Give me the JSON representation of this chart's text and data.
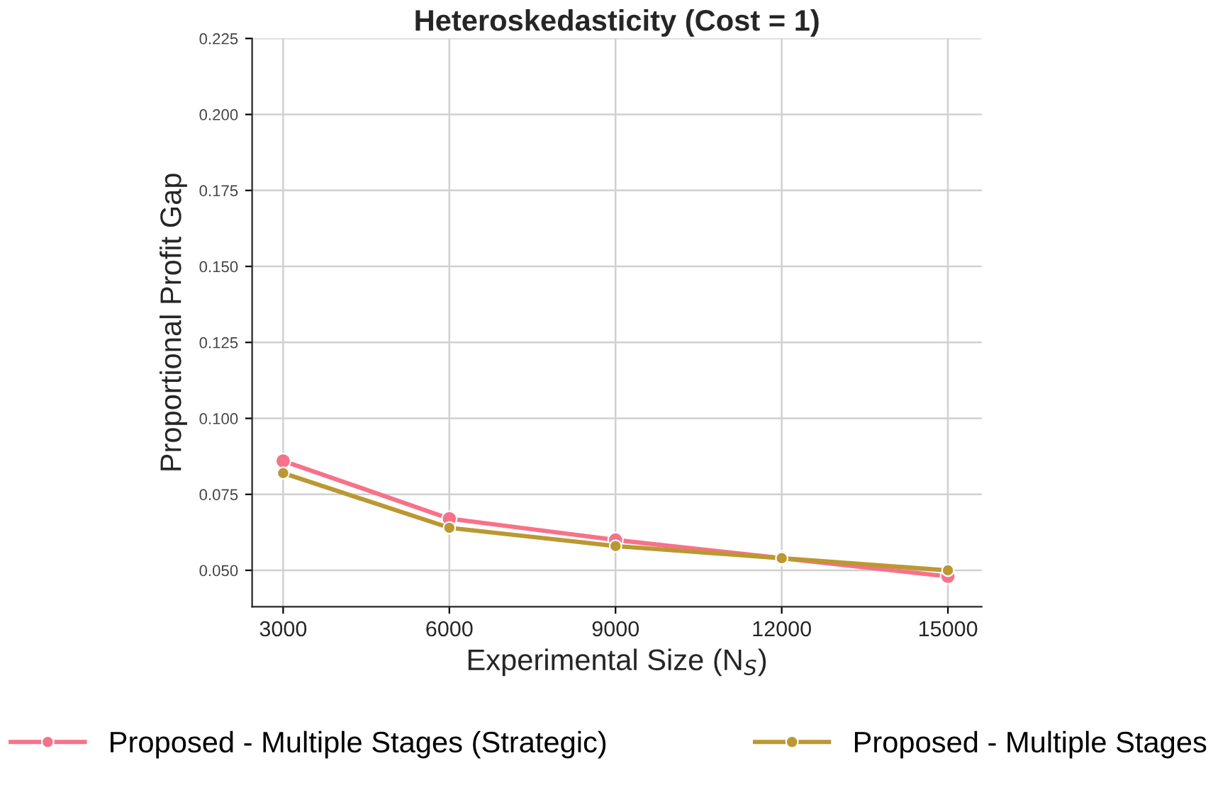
{
  "chart_data": {
    "type": "line",
    "title": "Heteroskedasticity (Cost = 1)",
    "xlabel": "Experimental Size (N$_{S}$)",
    "ylabel": "Proportional Profit Gap",
    "x": [
      3000,
      6000,
      9000,
      12000,
      15000
    ],
    "series": [
      {
        "name": "Proposed - Multiple Stages (Strategic)",
        "color": "#f77189",
        "values": [
          0.086,
          0.067,
          0.06,
          0.054,
          0.048
        ]
      },
      {
        "name": "Proposed - Multiple Stages",
        "color": "#bb9832",
        "values": [
          0.082,
          0.064,
          0.058,
          0.054,
          0.05
        ]
      }
    ],
    "xlim": [
      2440,
      15610
    ],
    "xticks": [
      3000,
      6000,
      9000,
      12000,
      15000
    ],
    "ylim": [
      0.038,
      0.225
    ],
    "yticks": [
      {
        "value": 0.05,
        "label": "0.050"
      },
      {
        "value": 0.075,
        "label": "0.075"
      },
      {
        "value": 0.1,
        "label": "0.100"
      },
      {
        "value": 0.125,
        "label": "0.125"
      },
      {
        "value": 0.15,
        "label": "0.150"
      },
      {
        "value": 0.175,
        "label": "0.175"
      },
      {
        "value": 0.2,
        "label": "0.200"
      },
      {
        "value": 0.225,
        "label": "0.225"
      }
    ],
    "grid": true,
    "legend": "bottom",
    "marker": "circle",
    "line_style": "solid"
  }
}
